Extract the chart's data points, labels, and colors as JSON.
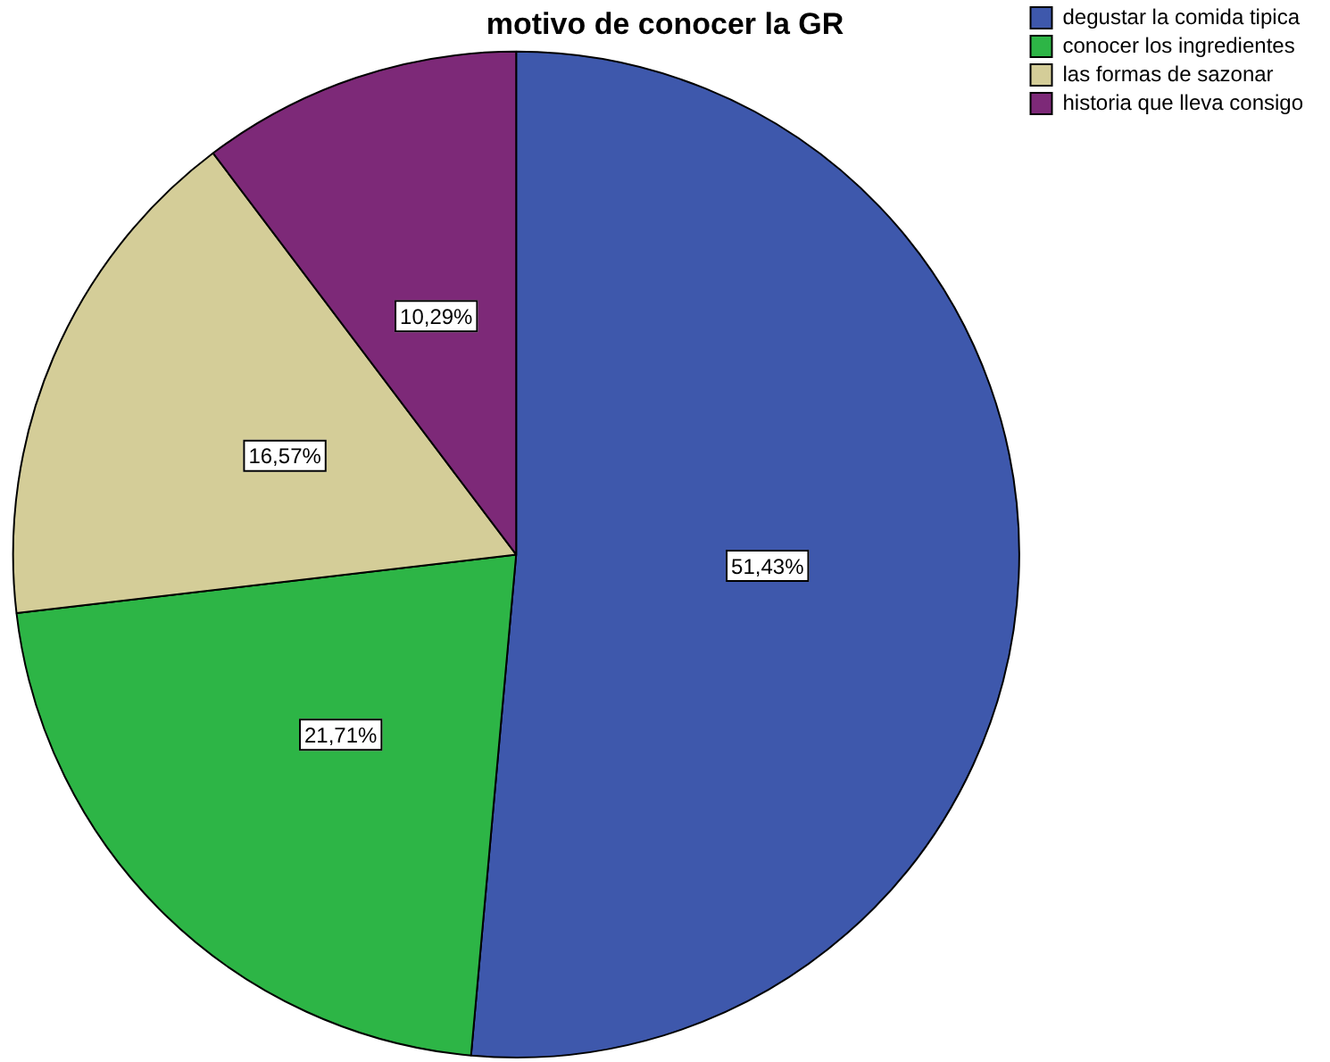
{
  "chart_data": {
    "type": "pie",
    "title": "motivo de conocer la GR",
    "categories": [
      "degustar la comida tipica",
      "conocer los ingredientes",
      "las formas de sazonar",
      "historia que lleva consigo"
    ],
    "values": [
      51.43,
      21.71,
      16.57,
      10.29
    ],
    "value_labels": [
      "51,43%",
      "21,71%",
      "16,57%",
      "10,29%"
    ],
    "colors": [
      "#3e58ac",
      "#2db546",
      "#d4cd98",
      "#7d2978"
    ],
    "legend": "top right"
  }
}
